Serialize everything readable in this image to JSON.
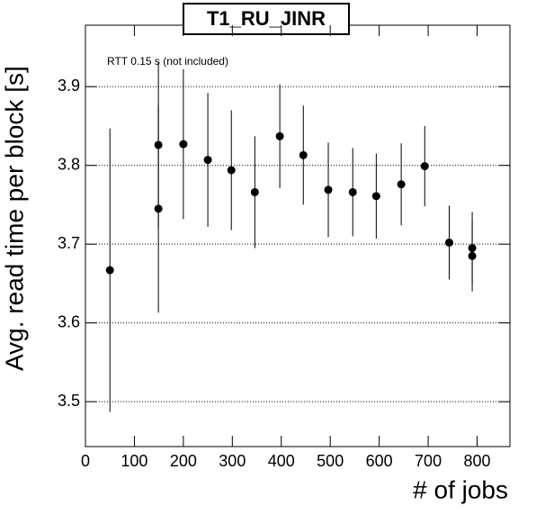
{
  "chart_data": {
    "type": "scatter",
    "title": "T1_RU_JINR",
    "annotation": "RTT 0.15 s (not included)",
    "x_label": "# of jobs",
    "y_label": "Avg. read time per block [s]",
    "series": [
      {
        "name": "T1_RU_JINR",
        "color": "#000000",
        "x": [
          50,
          149,
          149,
          200,
          250,
          298,
          346,
          397,
          445,
          496,
          546,
          594,
          645,
          693,
          743,
          790,
          790
        ],
        "values": [
          3.667,
          3.745,
          3.826,
          3.827,
          3.807,
          3.794,
          3.766,
          3.837,
          3.813,
          3.769,
          3.766,
          3.761,
          3.776,
          3.799,
          3.702,
          3.695,
          3.685
        ],
        "errors": [
          0.18,
          0.132,
          0.105,
          0.095,
          0.085,
          0.076,
          0.071,
          0.066,
          0.063,
          0.06,
          0.056,
          0.054,
          0.052,
          0.051,
          0.047,
          0.046,
          0.045
        ]
      }
    ],
    "xlim": [
      0,
      867
    ],
    "xticks": [
      0,
      100,
      200,
      300,
      400,
      500,
      600,
      700,
      800
    ],
    "ylim": [
      3.443,
      3.978
    ],
    "yticks": [
      3.5,
      3.6,
      3.7,
      3.8,
      3.9
    ],
    "grid": "y"
  }
}
